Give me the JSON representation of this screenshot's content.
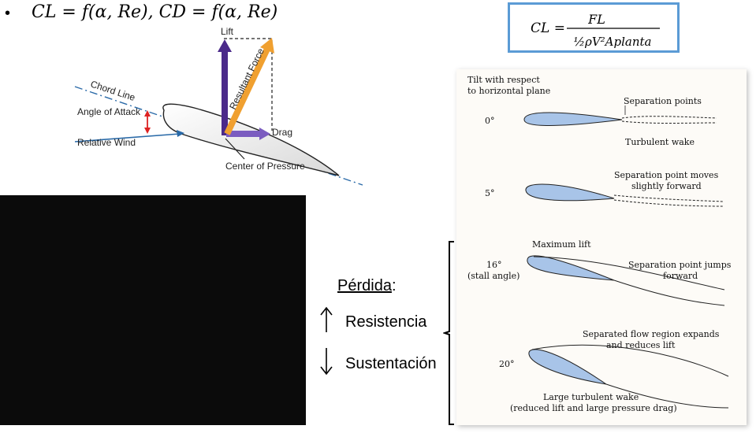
{
  "top_equation": {
    "bullet": "•",
    "text": "CL = f(α, Re), CD = f(α, Re)"
  },
  "formula": {
    "lhs": "CL =",
    "numerator": "FL",
    "denominator": "½ρV²Aplanta"
  },
  "airfoil_diagram": {
    "lift": "Lift",
    "drag": "Drag",
    "resultant_force": "Resultant Force",
    "chord_line": "Chord Line",
    "angle_of_attack": "Angle of Attack",
    "relative_wind": "Relative Wind",
    "center_of_pressure": "Center of Pressure"
  },
  "perdida": {
    "word": "Pérdida",
    "colon": ":",
    "resistencia": "Resistencia",
    "sustentacion": "Sustentación",
    "up_arrow": "↑",
    "down_arrow": "↓"
  },
  "stall_panel": {
    "header_line1": "Tilt with respect",
    "header_line2": "to horizontal plane",
    "cases": [
      {
        "angle": "0°",
        "label1": "Separation points",
        "label2": "Turbulent wake"
      },
      {
        "angle": "5°",
        "label1": "Separation point moves",
        "label2": "slightly forward"
      },
      {
        "angle": "16°",
        "sub": "(stall angle)",
        "label0": "Maximum lift",
        "label1": "Separation point jumps",
        "label2": "forward"
      },
      {
        "angle": "20°",
        "label1": "Separated flow region expands",
        "label2": "and reduces lift",
        "label3": "Large turbulent wake",
        "label4": "(reduced lift and large pressure drag)"
      }
    ]
  },
  "colors": {
    "formula_border": "#5b9bd5",
    "lift_arrow": "#4b2a8a",
    "resultant_arrow": "#f0a030",
    "airfoil_fill": "#a8c4e8"
  }
}
